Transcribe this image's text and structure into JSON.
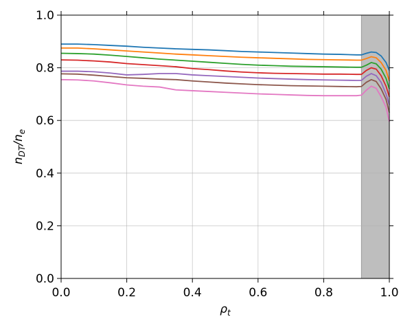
{
  "chart_data": {
    "type": "line",
    "xlabel": [
      "ρ",
      "t"
    ],
    "ylabel": [
      "n",
      "DT",
      "/n",
      "e"
    ],
    "x": [
      0,
      0.05,
      0.1,
      0.15,
      0.2,
      0.25,
      0.3,
      0.35,
      0.4,
      0.45,
      0.5,
      0.55,
      0.6,
      0.65,
      0.7,
      0.75,
      0.8,
      0.85,
      0.9,
      0.915,
      0.93,
      0.945,
      0.96,
      0.975,
      0.99,
      1.0
    ],
    "series": [
      {
        "color": "#1f77b4",
        "values": [
          0.89,
          0.89,
          0.888,
          0.885,
          0.882,
          0.878,
          0.875,
          0.872,
          0.87,
          0.868,
          0.865,
          0.862,
          0.86,
          0.858,
          0.856,
          0.854,
          0.852,
          0.851,
          0.849,
          0.849,
          0.855,
          0.86,
          0.858,
          0.845,
          0.82,
          0.79
        ]
      },
      {
        "color": "#ff7f0e",
        "values": [
          0.875,
          0.875,
          0.872,
          0.868,
          0.864,
          0.86,
          0.856,
          0.852,
          0.849,
          0.846,
          0.843,
          0.84,
          0.838,
          0.836,
          0.834,
          0.832,
          0.831,
          0.83,
          0.829,
          0.829,
          0.835,
          0.842,
          0.838,
          0.82,
          0.79,
          0.75
        ]
      },
      {
        "color": "#2ca02c",
        "values": [
          0.855,
          0.854,
          0.852,
          0.848,
          0.843,
          0.838,
          0.833,
          0.829,
          0.825,
          0.821,
          0.817,
          0.813,
          0.81,
          0.808,
          0.806,
          0.805,
          0.804,
          0.803,
          0.802,
          0.802,
          0.81,
          0.82,
          0.815,
          0.795,
          0.76,
          0.72
        ]
      },
      {
        "color": "#d62728",
        "values": [
          0.83,
          0.829,
          0.826,
          0.822,
          0.816,
          0.812,
          0.808,
          0.804,
          0.797,
          0.793,
          0.788,
          0.784,
          0.781,
          0.779,
          0.778,
          0.777,
          0.776,
          0.776,
          0.775,
          0.775,
          0.79,
          0.8,
          0.795,
          0.77,
          0.73,
          0.69
        ]
      },
      {
        "color": "#9467bd",
        "values": [
          0.787,
          0.787,
          0.785,
          0.78,
          0.773,
          0.775,
          0.778,
          0.778,
          0.773,
          0.77,
          0.767,
          0.764,
          0.761,
          0.759,
          0.757,
          0.755,
          0.754,
          0.753,
          0.752,
          0.752,
          0.768,
          0.778,
          0.77,
          0.745,
          0.7,
          0.66
        ]
      },
      {
        "color": "#8c564b",
        "values": [
          0.777,
          0.776,
          0.772,
          0.767,
          0.762,
          0.76,
          0.757,
          0.755,
          0.75,
          0.746,
          0.742,
          0.739,
          0.736,
          0.734,
          0.732,
          0.731,
          0.73,
          0.729,
          0.728,
          0.729,
          0.745,
          0.755,
          0.748,
          0.72,
          0.68,
          0.63
        ]
      },
      {
        "color": "#e377c2",
        "values": [
          0.755,
          0.754,
          0.75,
          0.743,
          0.735,
          0.73,
          0.727,
          0.716,
          0.713,
          0.71,
          0.707,
          0.704,
          0.701,
          0.699,
          0.697,
          0.695,
          0.694,
          0.694,
          0.694,
          0.696,
          0.715,
          0.73,
          0.722,
          0.69,
          0.65,
          0.595
        ]
      }
    ],
    "shaded_region": [
      0.915,
      1.0
    ],
    "shaded_color": "#bebebe",
    "xlim": [
      0.0,
      1.0
    ],
    "xticks": [
      {
        "value": 0,
        "label": "0.0"
      },
      0.2,
      0.4,
      0.6,
      0.8,
      {
        "value": 1,
        "label": "1.0"
      }
    ],
    "ylim": [
      0.0,
      1.0
    ],
    "yticks": [
      {
        "value": 0,
        "label": "0.0"
      },
      0.2,
      0.4,
      0.6,
      0.8,
      {
        "value": 1,
        "label": "1.0"
      }
    ],
    "grid": true
  }
}
